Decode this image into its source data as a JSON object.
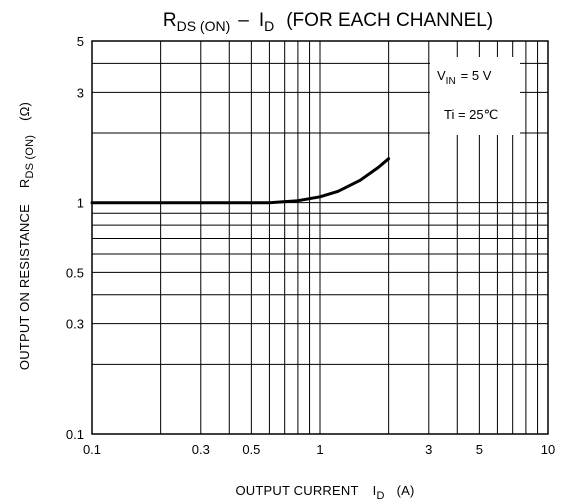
{
  "chart_data": {
    "type": "line",
    "title_parts": {
      "main": "R",
      "main_sub": "DS (ON)",
      "dash": "–",
      "var": "I",
      "var_sub": "D",
      "tail": "(FOR EACH CHANNEL)"
    },
    "xlabel": {
      "text": "OUTPUT CURRENT",
      "symbol": "I",
      "symbol_sub": "D",
      "unit": "(A)"
    },
    "ylabel": {
      "text": "OUTPUT ON RESISTANCE",
      "symbol": "R",
      "symbol_sub": "DS (ON)",
      "unit": "(Ω)"
    },
    "x_scale": "log",
    "y_scale": "log",
    "xlim": [
      0.1,
      10
    ],
    "ylim": [
      0.1,
      5
    ],
    "x_ticks": [
      {
        "value": 0.1,
        "label": "0.1"
      },
      {
        "value": 0.3,
        "label": "0.3"
      },
      {
        "value": 0.5,
        "label": "0.5"
      },
      {
        "value": 1,
        "label": "1"
      },
      {
        "value": 3,
        "label": "3"
      },
      {
        "value": 5,
        "label": "5"
      },
      {
        "value": 10,
        "label": "10"
      }
    ],
    "y_ticks": [
      {
        "value": 0.1,
        "label": "0.1"
      },
      {
        "value": 0.3,
        "label": "0.3"
      },
      {
        "value": 0.5,
        "label": "0.5"
      },
      {
        "value": 1,
        "label": "1"
      },
      {
        "value": 3,
        "label": "3"
      },
      {
        "value": 5,
        "label": "5"
      }
    ],
    "grid": true,
    "series": [
      {
        "points": [
          {
            "x": 0.1,
            "y": 1.0
          },
          {
            "x": 0.3,
            "y": 1.0
          },
          {
            "x": 0.6,
            "y": 1.0
          },
          {
            "x": 0.8,
            "y": 1.02
          },
          {
            "x": 1.0,
            "y": 1.06
          },
          {
            "x": 1.2,
            "y": 1.12
          },
          {
            "x": 1.5,
            "y": 1.25
          },
          {
            "x": 1.8,
            "y": 1.42
          },
          {
            "x": 2.0,
            "y": 1.55
          }
        ]
      }
    ],
    "annotations": {
      "vin_symbol": "V",
      "vin_sub": "IN",
      "vin_value": "= 5 V",
      "temp": "Ti = 25℃"
    },
    "colors": {
      "line": "#000000",
      "grid": "#000000",
      "background": "#ffffff"
    }
  }
}
